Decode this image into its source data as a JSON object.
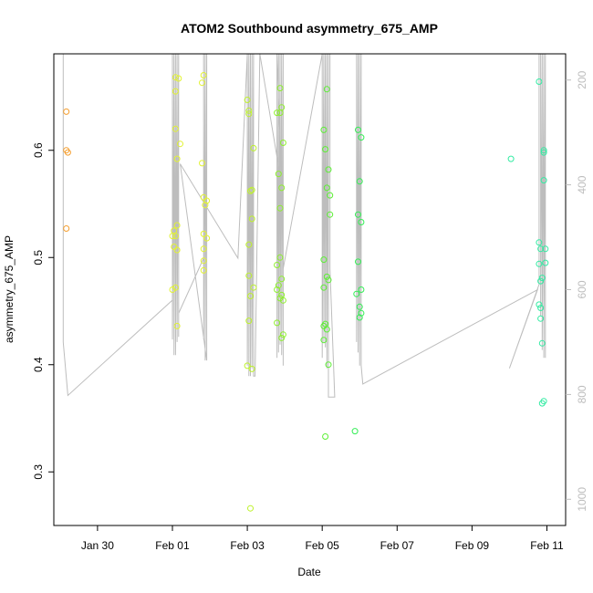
{
  "chart_data": {
    "type": "scatter",
    "title": "ATOM2 Southbound asymmetry_675_AMP",
    "xlabel": "Date",
    "ylabel": "asymmetry_675_AMP",
    "x_range": [
      "2026-01-28T20:00",
      "2026-02-11T12:00"
    ],
    "ylim": [
      0.25,
      0.69
    ],
    "y_ticks": [
      0.3,
      0.4,
      0.5,
      0.6
    ],
    "x_ticks": [
      {
        "x": "2026-01-30",
        "label": "Jan 30"
      },
      {
        "x": "2026-02-01",
        "label": "Feb 01"
      },
      {
        "x": "2026-02-03",
        "label": "Feb 03"
      },
      {
        "x": "2026-02-05",
        "label": "Feb 05"
      },
      {
        "x": "2026-02-07",
        "label": "Feb 07"
      },
      {
        "x": "2026-02-09",
        "label": "Feb 09"
      },
      {
        "x": "2026-02-11",
        "label": "Feb 11"
      }
    ],
    "y2_range": [
      1050,
      150
    ],
    "y2_ticks": [
      200,
      400,
      600,
      800,
      1000
    ],
    "grid": false,
    "legend": "none",
    "line_color": "#bdbdbd",
    "groups": [
      {
        "color": "#f59f30",
        "points": [
          [
            "2026-01-29T04:00",
            0.636
          ],
          [
            "2026-01-29T04:00",
            0.6
          ],
          [
            "2026-01-29T05:00",
            0.598
          ],
          [
            "2026-01-29T04:00",
            0.527
          ]
        ]
      },
      {
        "color": "#e2f232",
        "points": [
          [
            "2026-02-01T02:00",
            0.668
          ],
          [
            "2026-02-01T04:00",
            0.667
          ],
          [
            "2026-02-01T02:00",
            0.655
          ],
          [
            "2026-02-01T02:00",
            0.62
          ],
          [
            "2026-02-01T05:00",
            0.606
          ],
          [
            "2026-02-01T03:00",
            0.592
          ],
          [
            "2026-02-01T03:00",
            0.53
          ],
          [
            "2026-02-01T01:00",
            0.525
          ],
          [
            "2026-02-01T02:00",
            0.52
          ],
          [
            "2026-02-01T00:00",
            0.52
          ],
          [
            "2026-02-01T01:00",
            0.51
          ],
          [
            "2026-02-01T03:00",
            0.507
          ],
          [
            "2026-02-01T02:00",
            0.472
          ],
          [
            "2026-02-01T00:00",
            0.47
          ],
          [
            "2026-02-01T03:00",
            0.436
          ],
          [
            "2026-02-01T20:00",
            0.67
          ],
          [
            "2026-02-01T19:00",
            0.663
          ],
          [
            "2026-02-01T19:00",
            0.588
          ],
          [
            "2026-02-01T20:00",
            0.556
          ],
          [
            "2026-02-01T22:00",
            0.553
          ],
          [
            "2026-02-01T21:00",
            0.549
          ],
          [
            "2026-02-01T20:00",
            0.522
          ],
          [
            "2026-02-01T22:00",
            0.518
          ],
          [
            "2026-02-01T20:00",
            0.508
          ],
          [
            "2026-02-01T20:00",
            0.497
          ],
          [
            "2026-02-01T20:00",
            0.488
          ]
        ]
      },
      {
        "color": "#bef22c",
        "points": [
          [
            "2026-02-03T00:00",
            0.647
          ],
          [
            "2026-02-03T01:00",
            0.637
          ],
          [
            "2026-02-03T01:00",
            0.634
          ],
          [
            "2026-02-03T04:00",
            0.602
          ],
          [
            "2026-02-03T03:00",
            0.563
          ],
          [
            "2026-02-03T02:00",
            0.562
          ],
          [
            "2026-02-03T03:00",
            0.536
          ],
          [
            "2026-02-03T01:00",
            0.512
          ],
          [
            "2026-02-03T01:00",
            0.483
          ],
          [
            "2026-02-03T04:00",
            0.472
          ],
          [
            "2026-02-03T02:00",
            0.464
          ],
          [
            "2026-02-03T01:00",
            0.441
          ],
          [
            "2026-02-03T00:00",
            0.399
          ],
          [
            "2026-02-03T03:00",
            0.396
          ],
          [
            "2026-02-03T02:00",
            0.266
          ]
        ]
      },
      {
        "color": "#8ef02e",
        "points": [
          [
            "2026-02-03T21:00",
            0.658
          ],
          [
            "2026-02-03T22:00",
            0.64
          ],
          [
            "2026-02-03T19:00",
            0.635
          ],
          [
            "2026-02-03T21:00",
            0.635
          ],
          [
            "2026-02-03T23:00",
            0.607
          ],
          [
            "2026-02-03T20:00",
            0.578
          ],
          [
            "2026-02-03T22:00",
            0.565
          ],
          [
            "2026-02-03T21:00",
            0.546
          ],
          [
            "2026-02-03T21:00",
            0.5
          ],
          [
            "2026-02-03T19:00",
            0.493
          ],
          [
            "2026-02-03T22:00",
            0.48
          ],
          [
            "2026-02-03T20:00",
            0.474
          ],
          [
            "2026-02-03T19:00",
            0.47
          ],
          [
            "2026-02-03T22:00",
            0.465
          ],
          [
            "2026-02-03T21:00",
            0.462
          ],
          [
            "2026-02-03T23:00",
            0.46
          ],
          [
            "2026-02-03T19:00",
            0.439
          ],
          [
            "2026-02-03T23:00",
            0.428
          ],
          [
            "2026-02-03T22:00",
            0.425
          ]
        ]
      },
      {
        "color": "#5cf034",
        "points": [
          [
            "2026-02-05T03:00",
            0.657
          ],
          [
            "2026-02-05T01:00",
            0.619
          ],
          [
            "2026-02-05T02:00",
            0.601
          ],
          [
            "2026-02-05T04:00",
            0.582
          ],
          [
            "2026-02-05T03:00",
            0.565
          ],
          [
            "2026-02-05T05:00",
            0.558
          ],
          [
            "2026-02-05T05:00",
            0.54
          ],
          [
            "2026-02-05T01:00",
            0.498
          ],
          [
            "2026-02-05T03:00",
            0.482
          ],
          [
            "2026-02-05T04:00",
            0.479
          ],
          [
            "2026-02-05T01:00",
            0.472
          ],
          [
            "2026-02-05T02:00",
            0.438
          ],
          [
            "2026-02-05T01:00",
            0.436
          ],
          [
            "2026-02-05T03:00",
            0.433
          ],
          [
            "2026-02-05T01:00",
            0.423
          ],
          [
            "2026-02-05T04:00",
            0.4
          ],
          [
            "2026-02-05T02:00",
            0.333
          ]
        ]
      },
      {
        "color": "#33ee55",
        "points": [
          [
            "2026-02-05T23:00",
            0.619
          ],
          [
            "2026-02-06T01:00",
            0.612
          ],
          [
            "2026-02-06T00:00",
            0.571
          ],
          [
            "2026-02-05T23:00",
            0.54
          ],
          [
            "2026-02-06T01:00",
            0.533
          ],
          [
            "2026-02-05T23:00",
            0.496
          ],
          [
            "2026-02-06T01:00",
            0.47
          ],
          [
            "2026-02-05T22:00",
            0.466
          ],
          [
            "2026-02-06T00:00",
            0.454
          ],
          [
            "2026-02-06T01:00",
            0.448
          ],
          [
            "2026-02-06T00:00",
            0.444
          ],
          [
            "2026-02-05T21:00",
            0.338
          ]
        ]
      },
      {
        "color": "#33eba3",
        "points": [
          [
            "2026-02-10T01:00",
            0.592
          ],
          [
            "2026-02-10T19:00",
            0.664
          ],
          [
            "2026-02-10T22:00",
            0.6
          ],
          [
            "2026-02-10T22:00",
            0.598
          ],
          [
            "2026-02-10T22:00",
            0.572
          ],
          [
            "2026-02-10T19:00",
            0.514
          ],
          [
            "2026-02-10T20:00",
            0.508
          ],
          [
            "2026-02-10T23:00",
            0.508
          ],
          [
            "2026-02-10T19:00",
            0.494
          ],
          [
            "2026-02-10T23:00",
            0.495
          ],
          [
            "2026-02-10T21:00",
            0.481
          ],
          [
            "2026-02-10T20:00",
            0.478
          ],
          [
            "2026-02-10T19:00",
            0.456
          ],
          [
            "2026-02-10T20:00",
            0.453
          ],
          [
            "2026-02-10T20:00",
            0.443
          ],
          [
            "2026-02-10T21:00",
            0.42
          ],
          [
            "2026-02-10T22:00",
            0.366
          ],
          [
            "2026-02-10T21:00",
            0.364
          ]
        ]
      }
    ],
    "line_series": [
      {
        "name": "",
        "points": [
          [
            "2026-01-29T02:00",
            150
          ],
          [
            "2026-01-29T02:00",
            700
          ],
          [
            "2026-01-29T05:00",
            802
          ],
          [
            "2026-02-01T00:00",
            620
          ],
          [
            "2026-02-01T00:00",
            150
          ],
          [
            "2026-02-01T00:00",
            695
          ],
          [
            "2026-02-01T01:00",
            150
          ],
          [
            "2026-02-01T01:00",
            725
          ],
          [
            "2026-02-01T02:00",
            150
          ],
          [
            "2026-02-01T02:00",
            725
          ],
          [
            "2026-02-01T03:00",
            150
          ],
          [
            "2026-02-01T03:00",
            700
          ],
          [
            "2026-02-01T04:00",
            150
          ],
          [
            "2026-02-01T04:00",
            690
          ],
          [
            "2026-02-01T04:00",
            645
          ],
          [
            "2026-02-01T20:00",
            540
          ],
          [
            "2026-02-01T20:00",
            150
          ],
          [
            "2026-02-01T20:00",
            695
          ],
          [
            "2026-02-01T21:00",
            150
          ],
          [
            "2026-02-01T21:00",
            735
          ],
          [
            "2026-02-01T22:00",
            150
          ],
          [
            "2026-02-01T22:00",
            735
          ],
          [
            "2026-02-01T05:00",
            360
          ],
          [
            "2026-02-02T18:00",
            540
          ],
          [
            "2026-02-03T00:00",
            150
          ],
          [
            "2026-02-03T00:00",
            745
          ],
          [
            "2026-02-03T01:00",
            150
          ],
          [
            "2026-02-03T01:00",
            765
          ],
          [
            "2026-02-03T02:00",
            150
          ],
          [
            "2026-02-03T02:00",
            765
          ],
          [
            "2026-02-03T03:00",
            150
          ],
          [
            "2026-02-03T03:00",
            750
          ],
          [
            "2026-02-03T04:00",
            150
          ],
          [
            "2026-02-03T04:00",
            765
          ],
          [
            "2026-02-03T05:00",
            765
          ],
          [
            "2026-02-03T08:00",
            150
          ],
          [
            "2026-02-03T22:00",
            400
          ],
          [
            "2026-02-03T19:00",
            150
          ],
          [
            "2026-02-03T19:00",
            730
          ],
          [
            "2026-02-03T20:00",
            150
          ],
          [
            "2026-02-03T20:00",
            720
          ],
          [
            "2026-02-03T21:00",
            150
          ],
          [
            "2026-02-03T21:00",
            705
          ],
          [
            "2026-02-03T22:00",
            150
          ],
          [
            "2026-02-03T22:00",
            725
          ],
          [
            "2026-02-03T23:00",
            150
          ],
          [
            "2026-02-03T23:00",
            745
          ],
          [
            "2026-02-03T23:00",
            560
          ],
          [
            "2026-02-05T00:00",
            150
          ],
          [
            "2026-02-05T00:00",
            730
          ],
          [
            "2026-02-05T01:00",
            150
          ],
          [
            "2026-02-05T01:00",
            700
          ],
          [
            "2026-02-05T02:00",
            150
          ],
          [
            "2026-02-05T02:00",
            710
          ],
          [
            "2026-02-05T03:00",
            150
          ],
          [
            "2026-02-05T03:00",
            750
          ],
          [
            "2026-02-05T04:00",
            150
          ],
          [
            "2026-02-05T04:00",
            805
          ],
          [
            "2026-02-05T08:00",
            805
          ],
          [
            "2026-02-05T05:00",
            560
          ],
          [
            "2026-02-05T05:00",
            150
          ],
          [
            "2026-02-05T22:00",
            150
          ],
          [
            "2026-02-05T22:00",
            700
          ],
          [
            "2026-02-05T23:00",
            150
          ],
          [
            "2026-02-05T23:00",
            720
          ],
          [
            "2026-02-06T00:00",
            150
          ],
          [
            "2026-02-06T00:00",
            745
          ],
          [
            "2026-02-06T01:00",
            150
          ],
          [
            "2026-02-06T01:00",
            745
          ],
          [
            "2026-02-06T01:00",
            540
          ],
          [
            "2026-02-06T01:00",
            745
          ],
          [
            "2026-02-06T02:00",
            780
          ],
          [
            "2026-02-10T18:00",
            600
          ],
          [
            "2026-02-10T00:00",
            750
          ],
          [
            "2026-02-10T19:00",
            590
          ],
          [
            "2026-02-10T19:00",
            150
          ],
          [
            "2026-02-10T20:00",
            150
          ],
          [
            "2026-02-10T20:00",
            650
          ],
          [
            "2026-02-10T21:00",
            150
          ],
          [
            "2026-02-10T21:00",
            715
          ],
          [
            "2026-02-10T22:00",
            150
          ],
          [
            "2026-02-10T22:00",
            730
          ],
          [
            "2026-02-10T23:00",
            150
          ],
          [
            "2026-02-10T23:00",
            730
          ]
        ]
      }
    ]
  }
}
